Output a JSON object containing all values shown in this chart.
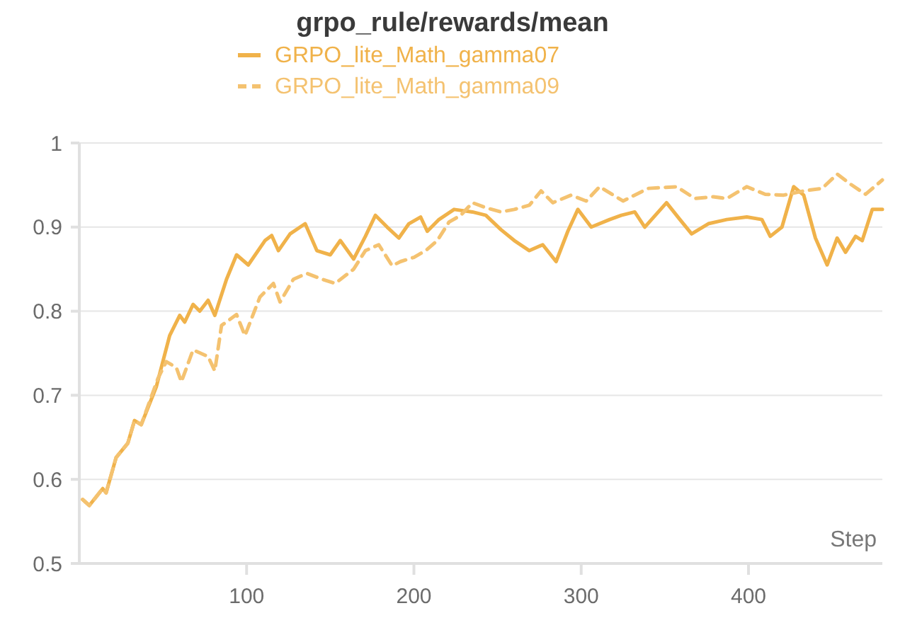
{
  "chart_data": {
    "type": "line",
    "title": "grpo_rule/rewards/mean",
    "xlabel": "Step",
    "xlim": [
      0,
      480
    ],
    "xticks": [
      100,
      200,
      300,
      400
    ],
    "ylim": [
      0.5,
      1
    ],
    "yticks": [
      0.5,
      0.6,
      0.7,
      0.8,
      0.9,
      1
    ],
    "grid": "y",
    "legend": "top",
    "marker": "none",
    "series": [
      {
        "name": "GRPO_lite_Math_gamma07",
        "color": "#f0b24a",
        "line_style": "solid",
        "x": [
          2,
          6,
          14,
          16,
          22,
          29,
          33,
          37,
          46,
          54,
          60,
          63,
          68,
          72,
          77,
          81,
          88,
          94,
          101,
          111,
          115,
          119,
          126,
          135,
          142,
          150,
          156,
          164,
          171,
          177,
          184,
          191,
          197,
          204,
          208,
          215,
          224,
          235,
          243,
          252,
          260,
          269,
          277,
          285,
          292,
          298,
          306,
          317,
          324,
          332,
          338,
          351,
          359,
          366,
          376,
          387,
          399,
          408,
          413,
          420,
          427,
          433,
          440,
          447,
          453,
          458,
          464,
          468,
          474,
          480
        ],
        "values": [
          0.576,
          0.569,
          0.589,
          0.584,
          0.626,
          0.643,
          0.67,
          0.665,
          0.71,
          0.771,
          0.795,
          0.787,
          0.808,
          0.8,
          0.813,
          0.795,
          0.838,
          0.867,
          0.855,
          0.884,
          0.89,
          0.872,
          0.892,
          0.904,
          0.872,
          0.867,
          0.884,
          0.862,
          0.889,
          0.914,
          0.9,
          0.887,
          0.904,
          0.912,
          0.895,
          0.909,
          0.921,
          0.918,
          0.914,
          0.897,
          0.884,
          0.872,
          0.879,
          0.859,
          0.895,
          0.921,
          0.9,
          0.909,
          0.914,
          0.918,
          0.9,
          0.929,
          0.909,
          0.892,
          0.904,
          0.909,
          0.912,
          0.909,
          0.889,
          0.9,
          0.948,
          0.938,
          0.887,
          0.855,
          0.887,
          0.87,
          0.889,
          0.884,
          0.921,
          0.921
        ]
      },
      {
        "name": "GRPO_lite_Math_gamma09",
        "color": "#f4c270",
        "line_style": "dashed",
        "x": [
          2,
          6,
          14,
          16,
          22,
          29,
          33,
          37,
          47,
          52,
          58,
          61,
          68,
          77,
          81,
          85,
          94,
          99,
          108,
          116,
          120,
          128,
          136,
          145,
          153,
          164,
          171,
          179,
          187,
          192,
          200,
          207,
          214,
          221,
          228,
          235,
          243,
          252,
          260,
          269,
          276,
          283,
          294,
          303,
          311,
          325,
          340,
          357,
          368,
          379,
          387,
          399,
          410,
          421,
          433,
          444,
          453,
          461,
          470,
          480
        ],
        "values": [
          0.576,
          0.569,
          0.589,
          0.584,
          0.626,
          0.643,
          0.67,
          0.665,
          0.72,
          0.74,
          0.733,
          0.716,
          0.754,
          0.746,
          0.729,
          0.783,
          0.796,
          0.771,
          0.817,
          0.833,
          0.811,
          0.838,
          0.845,
          0.838,
          0.833,
          0.85,
          0.872,
          0.879,
          0.854,
          0.859,
          0.864,
          0.872,
          0.884,
          0.906,
          0.914,
          0.929,
          0.923,
          0.918,
          0.921,
          0.926,
          0.943,
          0.929,
          0.938,
          0.931,
          0.948,
          0.931,
          0.946,
          0.948,
          0.934,
          0.936,
          0.934,
          0.948,
          0.939,
          0.938,
          0.943,
          0.946,
          0.963,
          0.951,
          0.939,
          0.956
        ]
      }
    ]
  }
}
